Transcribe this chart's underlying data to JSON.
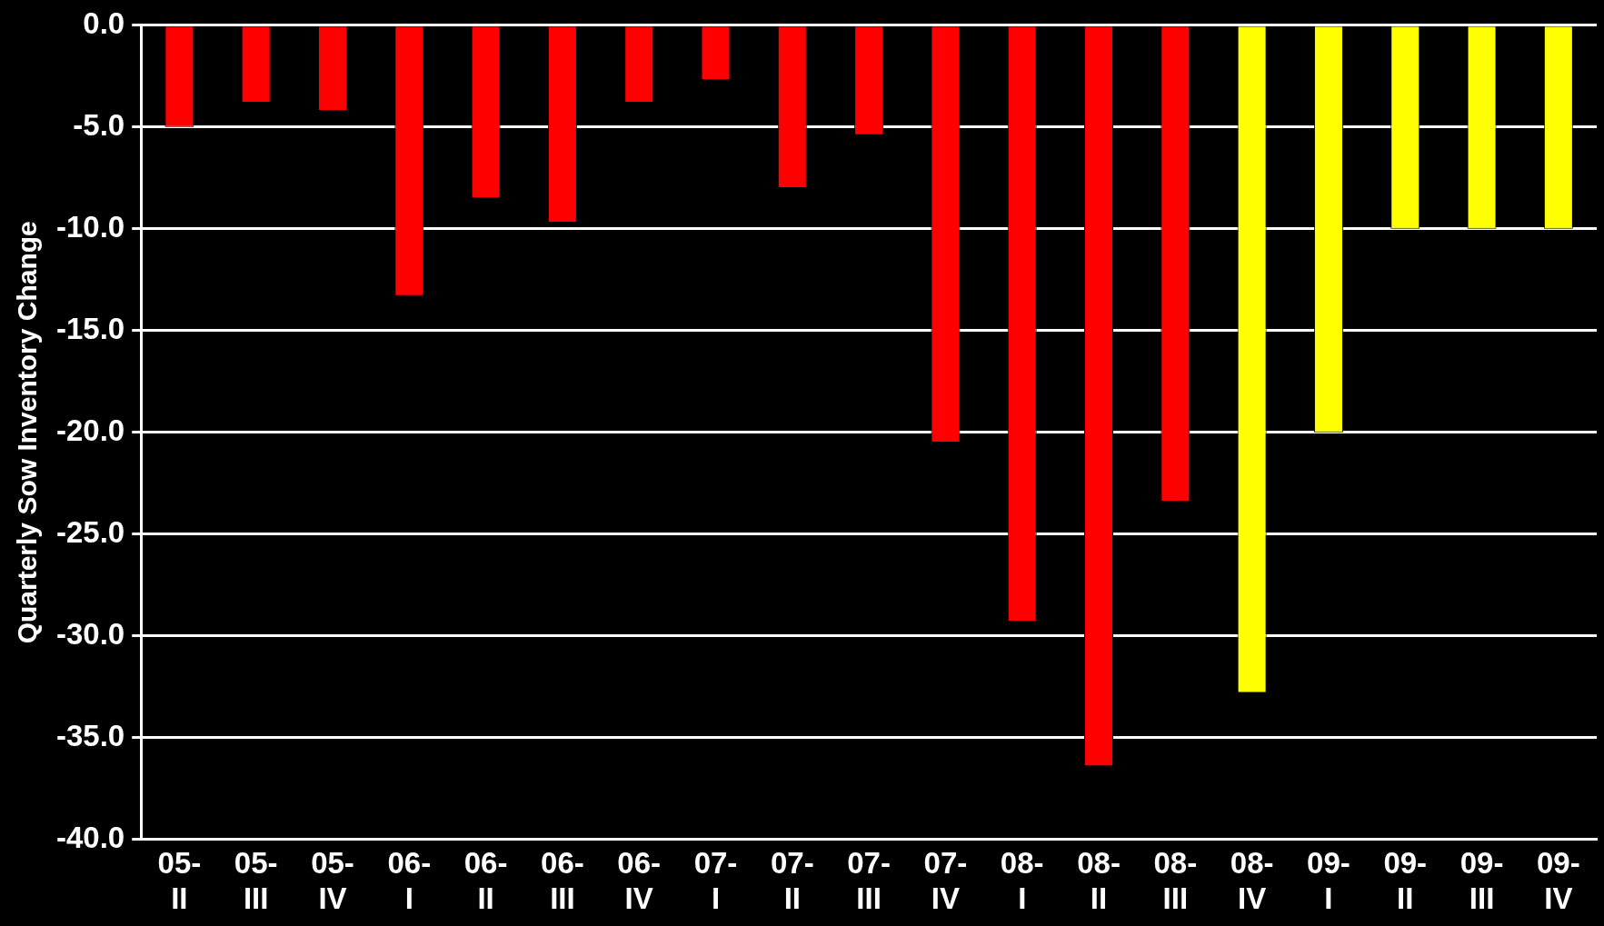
{
  "chart_data": {
    "type": "bar",
    "ylabel": "Quarterly Sow Inventory Change",
    "categories": [
      "05-II",
      "05-III",
      "05-IV",
      "06-I",
      "06-II",
      "06-III",
      "06-IV",
      "07-I",
      "07-II",
      "07-III",
      "07-IV",
      "08-I",
      "08-II",
      "08-III",
      "08-IV",
      "09-I",
      "09-II",
      "09-III",
      "09-IV"
    ],
    "values": [
      -5.0,
      -3.8,
      -4.2,
      -13.3,
      -8.5,
      -9.7,
      -3.8,
      -2.7,
      -8.0,
      -5.4,
      -20.5,
      -29.3,
      -36.4,
      -23.4,
      -32.8,
      -20.0,
      -10.0,
      -10.0,
      -10.0
    ],
    "colors": [
      "#ff0000",
      "#ff0000",
      "#ff0000",
      "#ff0000",
      "#ff0000",
      "#ff0000",
      "#ff0000",
      "#ff0000",
      "#ff0000",
      "#ff0000",
      "#ff0000",
      "#ff0000",
      "#ff0000",
      "#ff0000",
      "#ffff00",
      "#ffff00",
      "#ffff00",
      "#ffff00",
      "#ffff00"
    ],
    "ylim": [
      -40,
      0
    ],
    "yticks": [
      {
        "value": 0,
        "label": "0.0"
      },
      {
        "value": -5,
        "label": "-5.0"
      },
      {
        "value": -10,
        "label": "-10.0"
      },
      {
        "value": -15,
        "label": "-15.0"
      },
      {
        "value": -20,
        "label": "-20.0"
      },
      {
        "value": -25,
        "label": "-25.0"
      },
      {
        "value": -30,
        "label": "-30.0"
      },
      {
        "value": -35,
        "label": "-35.0"
      },
      {
        "value": -40,
        "label": "-40.0"
      }
    ],
    "grid": "y",
    "legend": false
  }
}
